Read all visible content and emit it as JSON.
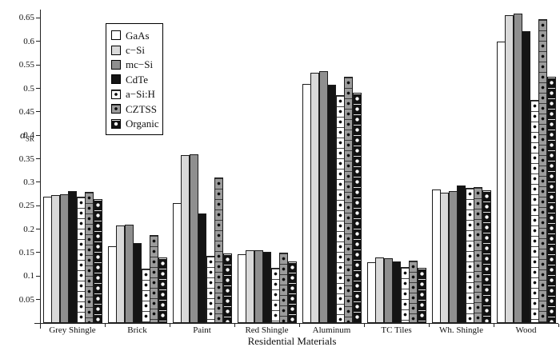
{
  "figure": {
    "xlabel": "Residential Materials",
    "ylabel_symbol": "α",
    "ylabel_subscript": "SR"
  },
  "legend": {
    "items": [
      {
        "label": "GaAs",
        "fill": "#ffffff",
        "pattern": "solid"
      },
      {
        "label": "c−Si",
        "fill": "#d9d9d9",
        "pattern": "solid"
      },
      {
        "label": "mc−Si",
        "fill": "#8f8f8f",
        "pattern": "solid"
      },
      {
        "label": "CdTe",
        "fill": "#141414",
        "pattern": "solid"
      },
      {
        "label": "a−Si:H",
        "fill": "#ffffff",
        "pattern": "dots-dark"
      },
      {
        "label": "CZTSS",
        "fill": "#9c9c9c",
        "pattern": "dots-dark"
      },
      {
        "label": "Organic",
        "fill": "#121212",
        "pattern": "dots-light"
      }
    ]
  },
  "chart_data": {
    "type": "bar",
    "title": "",
    "xlabel": "Residential Materials",
    "ylabel": "alpha_SR",
    "ylim": [
      0,
      0.68
    ],
    "yticks": [
      "0.05",
      "0.1",
      "0.15",
      "0.2",
      "0.25",
      "0.3",
      "0.35",
      "0.4",
      "0.45",
      "0.5",
      "0.55",
      "0.6",
      "0.65"
    ],
    "grid": false,
    "legend_position": "upper-left-inside",
    "categories": [
      "Grey Shingle",
      "Brick",
      "Paint",
      "Red Shingle",
      "Aluminum",
      "TC Tiles",
      "Wh. Shingle",
      "Wood"
    ],
    "series": [
      {
        "name": "GaAs",
        "fill": "#ffffff",
        "pattern": "solid",
        "values": [
          0.27,
          0.164,
          0.255,
          0.147,
          0.51,
          0.13,
          0.285,
          0.6
        ]
      },
      {
        "name": "c−Si",
        "fill": "#d9d9d9",
        "pattern": "solid",
        "values": [
          0.272,
          0.207,
          0.357,
          0.155,
          0.533,
          0.14,
          0.278,
          0.656
        ]
      },
      {
        "name": "mc−Si",
        "fill": "#8f8f8f",
        "pattern": "solid",
        "values": [
          0.274,
          0.21,
          0.36,
          0.155,
          0.537,
          0.138,
          0.281,
          0.66
        ]
      },
      {
        "name": "CdTe",
        "fill": "#141414",
        "pattern": "solid",
        "values": [
          0.281,
          0.17,
          0.233,
          0.152,
          0.507,
          0.132,
          0.293,
          0.622
        ]
      },
      {
        "name": "a−Si:H",
        "fill": "#ffffff",
        "pattern": "dots-dark",
        "values": [
          0.27,
          0.115,
          0.143,
          0.118,
          0.486,
          0.12,
          0.288,
          0.475
        ]
      },
      {
        "name": "CZTSS",
        "fill": "#9c9c9c",
        "pattern": "dots-dark",
        "values": [
          0.279,
          0.187,
          0.31,
          0.15,
          0.525,
          0.133,
          0.29,
          0.648
        ]
      },
      {
        "name": "Organic",
        "fill": "#121212",
        "pattern": "dots-light",
        "values": [
          0.264,
          0.14,
          0.148,
          0.131,
          0.49,
          0.118,
          0.283,
          0.525
        ]
      }
    ]
  }
}
